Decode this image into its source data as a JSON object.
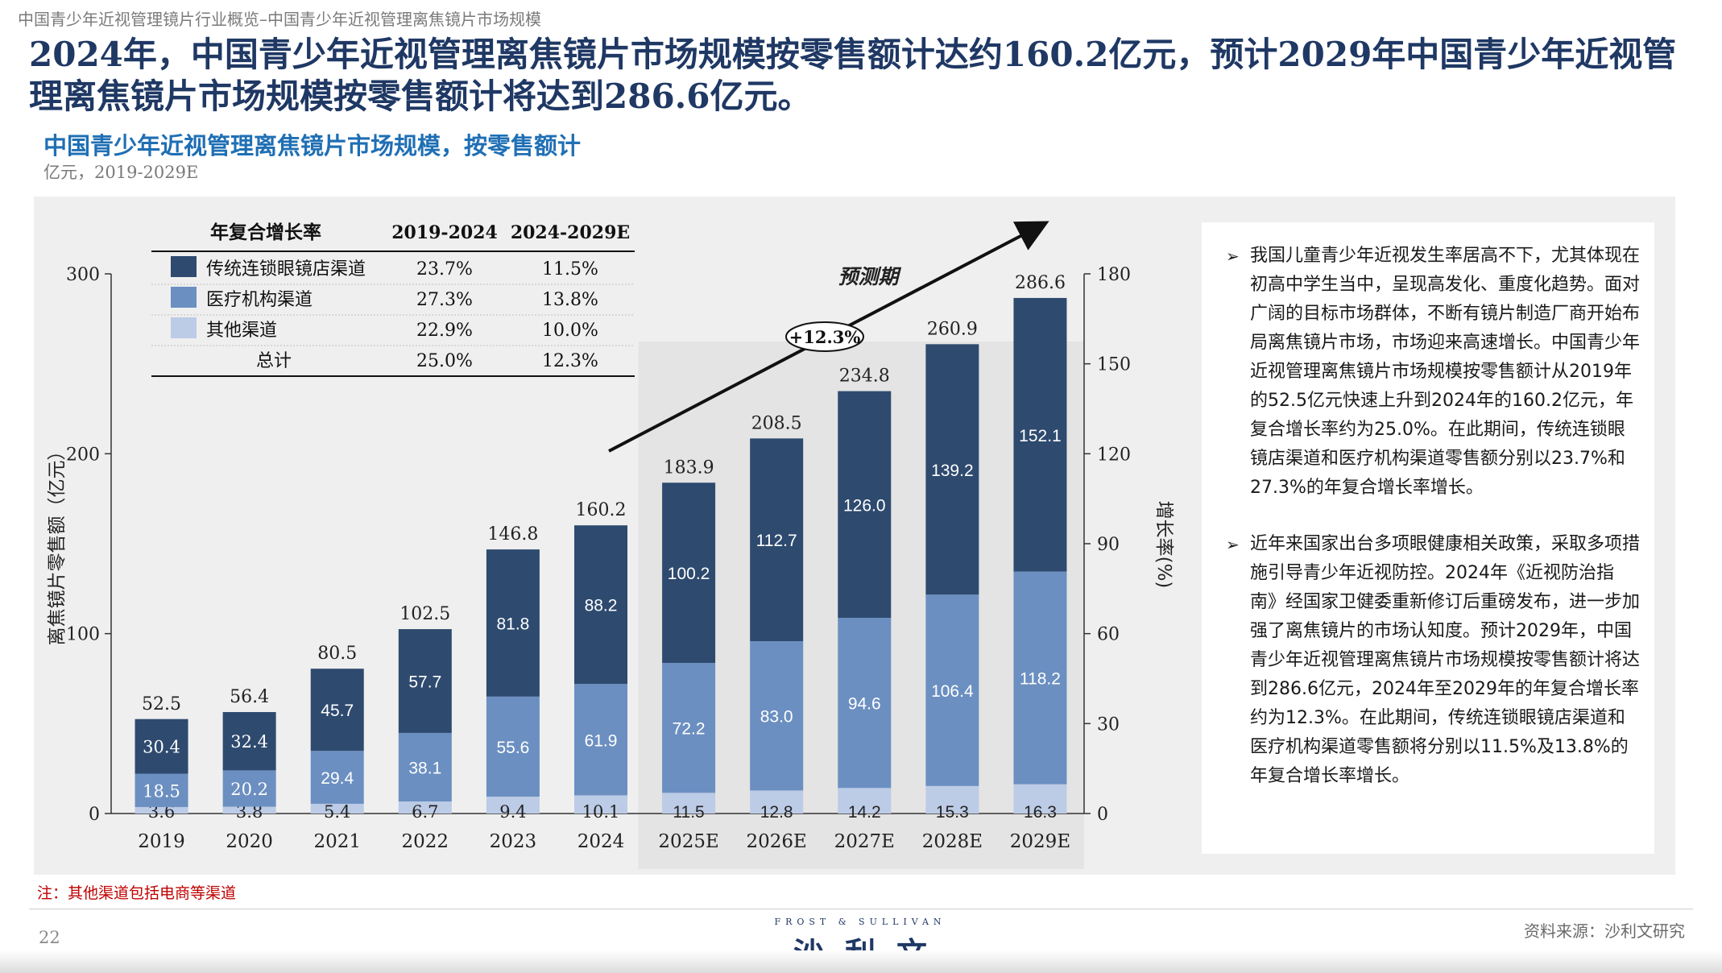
{
  "breadcrumb": "中国青少年近视管理镜片行业概览–中国青少年近视管理离焦镜片市场规模",
  "headline": "2024年，中国青少年近视管理离焦镜片市场规模按零售额计达约160.2亿元，预计2029年中国青少年近视管理离焦镜片市场规模按零售额计将达到286.6亿元。",
  "chart_title": "中国青少年近视管理离焦镜片市场规模，按零售额计",
  "chart_subtitle": "亿元，2019-2029E",
  "colors": {
    "traditional": "#2e4a6f",
    "medical": "#6b8fc1",
    "other": "#bccbe6",
    "headline": "#1f3864",
    "title": "#1f6fb4",
    "forecast_bg": "#e4e4e4"
  },
  "chart_data": {
    "type": "bar",
    "stacked": true,
    "title": "中国青少年近视管理离焦镜片市场规模，按零售额计",
    "categories": [
      "2019",
      "2020",
      "2021",
      "2022",
      "2023",
      "2024",
      "2025E",
      "2026E",
      "2027E",
      "2028E",
      "2029E"
    ],
    "series": [
      {
        "name": "其他渠道",
        "key": "other",
        "values": [
          3.6,
          3.8,
          5.4,
          6.7,
          9.4,
          10.1,
          11.5,
          12.8,
          14.2,
          15.3,
          16.3
        ]
      },
      {
        "name": "医疗机构渠道",
        "key": "medical",
        "values": [
          18.5,
          20.2,
          29.4,
          38.1,
          55.6,
          61.9,
          72.2,
          83.0,
          94.6,
          106.4,
          118.2
        ]
      },
      {
        "name": "传统连锁眼镜店渠道",
        "key": "traditional",
        "values": [
          30.4,
          32.4,
          45.7,
          57.7,
          81.8,
          88.2,
          100.2,
          112.7,
          126.0,
          139.2,
          152.1
        ]
      }
    ],
    "totals": [
      "52.5",
      "56.4",
      "80.5",
      "102.5",
      "146.8",
      "160.2",
      "183.9",
      "208.5",
      "234.8",
      "260.9",
      "286.6"
    ],
    "label_texts": {
      "other": [
        "3.6",
        "3.8",
        "5.4",
        "6.7",
        "9.4",
        "10.1",
        "11.5",
        "12.8",
        "14.2",
        "15.3",
        "16.3"
      ],
      "medical": [
        "18.5",
        "20.2",
        "29.4",
        "38.1",
        "55.6",
        "61.9",
        "72.2",
        "83.0",
        "94.6",
        "106.4",
        "118.2"
      ],
      "traditional": [
        "30.4",
        "32.4",
        "45.7",
        "57.7",
        "81.8",
        "88.2",
        "100.2",
        "112.7",
        "126.0",
        "139.2",
        "152.1"
      ]
    },
    "ylabel": "离焦镜片零售额（亿元）",
    "ylim": [
      0,
      300
    ],
    "yticks": [
      "0",
      "100",
      "200",
      "300"
    ],
    "ylabel_right": "增长率(%)",
    "ylim_right": [
      0,
      180
    ],
    "yticks_right": [
      "0",
      "30",
      "60",
      "90",
      "120",
      "150",
      "180"
    ],
    "forecast_start_index": 6,
    "forecast_label": "预测期",
    "cagr_badge": "+12.3%",
    "cagr_table": {
      "headers": [
        "年复合增长率",
        "2019-2024",
        "2024-2029E"
      ],
      "rows": [
        {
          "key": "traditional",
          "label": "传统连锁眼镜店渠道",
          "v1": "23.7%",
          "v2": "11.5%"
        },
        {
          "key": "medical",
          "label": "医疗机构渠道",
          "v1": "27.3%",
          "v2": "13.8%"
        },
        {
          "key": "other",
          "label": "其他渠道",
          "v1": "22.9%",
          "v2": "10.0%"
        },
        {
          "key": "total",
          "label": "总计",
          "v1": "25.0%",
          "v2": "12.3%"
        }
      ]
    }
  },
  "notes": {
    "paragraph_1": "我国儿童青少年近视发生率居高不下，尤其体现在初高中学生当中，呈现高发化、重度化趋势。面对广阔的目标市场群体，不断有镜片制造厂商开始布局离焦镜片市场，市场迎来高速增长。中国青少年近视管理离焦镜片市场规模按零售额计从2019年的52.5亿元快速上升到2024年的160.2亿元，年复合增长率约为25.0%。在此期间，传统连锁眼镜店渠道和医疗机构渠道零售额分别以23.7%和27.3%的年复合增长率增长。",
    "paragraph_2": "近年来国家出台多项眼健康相关政策，采取多项措施引导青少年近视防控。2024年《近视防治指南》经国家卫健委重新修订后重磅发布，进一步加强了离焦镜片的市场认知度。预计2029年，中国青少年近视管理离焦镜片市场规模按零售额计将达到286.6亿元，2024年至2029年的年复合增长率约为12.3%。在此期间，传统连锁眼镜店渠道和医疗机构渠道零售额将分别以11.5%及13.8%的年复合增长率增长。"
  },
  "footnote": "注：其他渠道包括电商等渠道",
  "page_number": "22",
  "logo": {
    "english": "FROST & SULLIVAN",
    "chinese": "沙利文"
  },
  "source": "资料来源：沙利文研究"
}
